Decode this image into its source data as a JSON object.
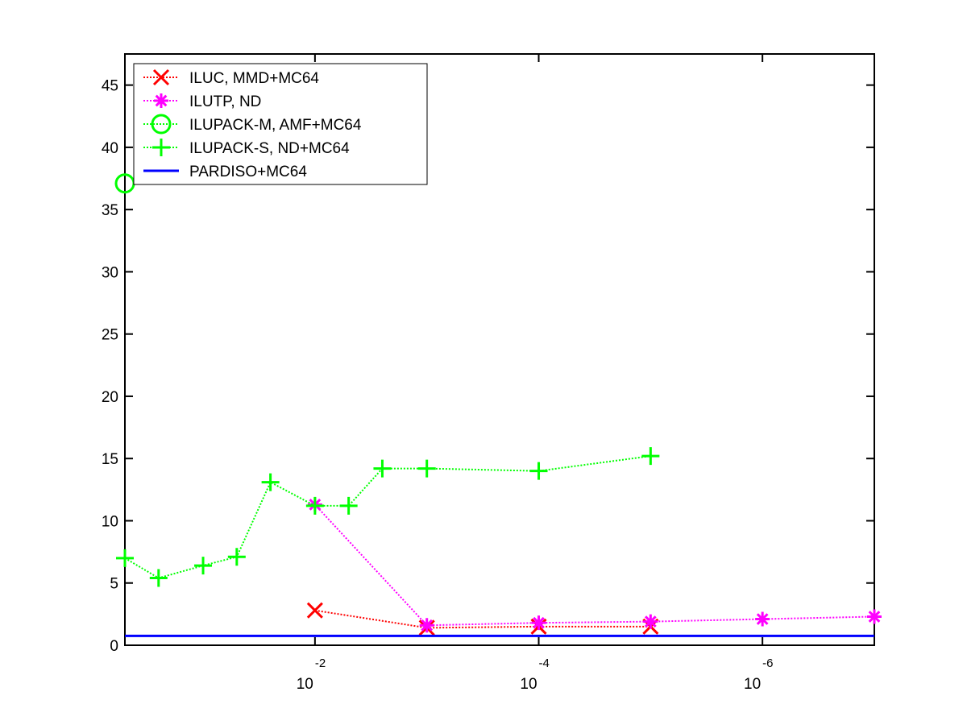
{
  "chart_data": {
    "type": "line",
    "title": "",
    "xlabel": "",
    "ylabel": "",
    "x_scale": "log",
    "x_reversed": true,
    "xlim": [
      0.5,
      1e-07
    ],
    "ylim": [
      0,
      47.5
    ],
    "grid": false,
    "legend_position": "top-left",
    "y_ticks": [
      0,
      5,
      10,
      15,
      20,
      25,
      30,
      35,
      40,
      45
    ],
    "x_ticks": [
      {
        "value": 0.01,
        "base": "10",
        "exponent": "-2"
      },
      {
        "value": 0.0001,
        "base": "10",
        "exponent": "-4"
      },
      {
        "value": 1e-06,
        "base": "10",
        "exponent": "-6"
      }
    ],
    "series": [
      {
        "name": "ILUC, MMD+MC64",
        "color": "#ff0000",
        "marker": "x",
        "line": "dotted",
        "x": [
          0.01,
          0.001,
          0.0001,
          1e-05
        ],
        "y": [
          2.8,
          1.4,
          1.5,
          1.5
        ]
      },
      {
        "name": "ILUTP,  ND",
        "color": "#ff00ff",
        "marker": "asterisk",
        "line": "dotted",
        "x": [
          0.01,
          0.001,
          0.0001,
          1e-05,
          1e-06,
          1e-07
        ],
        "y": [
          11.3,
          1.6,
          1.8,
          1.9,
          2.1,
          2.3
        ]
      },
      {
        "name": "ILUPACK-M, AMF+MC64",
        "color": "#00ff00",
        "marker": "circle",
        "line": "dotted",
        "x": [
          0.5
        ],
        "y": [
          37.1
        ]
      },
      {
        "name": "ILUPACK-S, ND+MC64",
        "color": "#00ff00",
        "marker": "plus",
        "line": "dotted",
        "x": [
          0.5,
          0.25,
          0.1,
          0.05,
          0.025,
          0.01,
          0.005,
          0.0025,
          0.001,
          0.0001,
          1e-05
        ],
        "y": [
          7.0,
          5.4,
          6.4,
          7.1,
          13.1,
          11.2,
          11.2,
          14.2,
          14.2,
          14.0,
          15.2
        ]
      },
      {
        "name": "PARDISO+MC64",
        "color": "#0000ff",
        "marker": "none",
        "line": "solid",
        "x": [
          0.5,
          1e-07
        ],
        "y": [
          0.75,
          0.75
        ]
      }
    ]
  }
}
